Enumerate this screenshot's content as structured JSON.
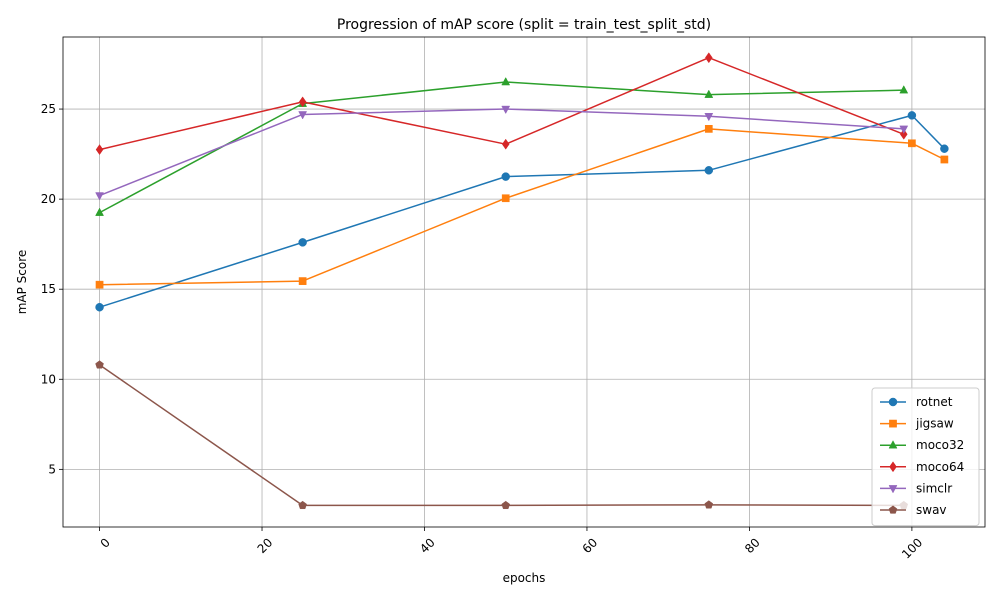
{
  "chart_data": {
    "type": "line",
    "title": "Progression of mAP score (split = train_test_split_std)",
    "xlabel": "epochs",
    "ylabel": "mAP Score",
    "xlim": [
      -4.5,
      109
    ],
    "ylim": [
      1.8,
      29.0
    ],
    "x_ticks": [
      0,
      20,
      40,
      60,
      80,
      100
    ],
    "y_ticks": [
      5,
      10,
      15,
      20,
      25
    ],
    "x_tick_rotation": 45,
    "grid": true,
    "legend_position": "lower right",
    "series": [
      {
        "name": "rotnet",
        "color": "#1f77b4",
        "marker": "circle",
        "x": [
          0,
          25,
          50,
          75,
          100,
          104
        ],
        "y": [
          14.0,
          17.6,
          21.25,
          21.6,
          24.65,
          22.8
        ]
      },
      {
        "name": "jigsaw",
        "color": "#ff7f0e",
        "marker": "square",
        "x": [
          0,
          25,
          50,
          75,
          100,
          104
        ],
        "y": [
          15.25,
          15.45,
          20.05,
          23.9,
          23.1,
          22.2
        ]
      },
      {
        "name": "moco32",
        "color": "#2ca02c",
        "marker": "triangle-up",
        "x": [
          0,
          25,
          50,
          75,
          99
        ],
        "y": [
          19.25,
          25.3,
          26.5,
          25.8,
          26.05
        ]
      },
      {
        "name": "moco64",
        "color": "#d62728",
        "marker": "diamond",
        "x": [
          0,
          25,
          50,
          75,
          99
        ],
        "y": [
          22.75,
          25.4,
          23.05,
          27.85,
          23.6
        ]
      },
      {
        "name": "simclr",
        "color": "#9467bd",
        "marker": "triangle-down",
        "x": [
          0,
          25,
          50,
          75,
          99
        ],
        "y": [
          20.2,
          24.7,
          25.0,
          24.6,
          23.9
        ]
      },
      {
        "name": "swav",
        "color": "#8c564b",
        "marker": "pentagon",
        "x": [
          0,
          25,
          50,
          75,
          99
        ],
        "y": [
          10.8,
          3.0,
          3.0,
          3.03,
          3.0
        ]
      }
    ]
  }
}
